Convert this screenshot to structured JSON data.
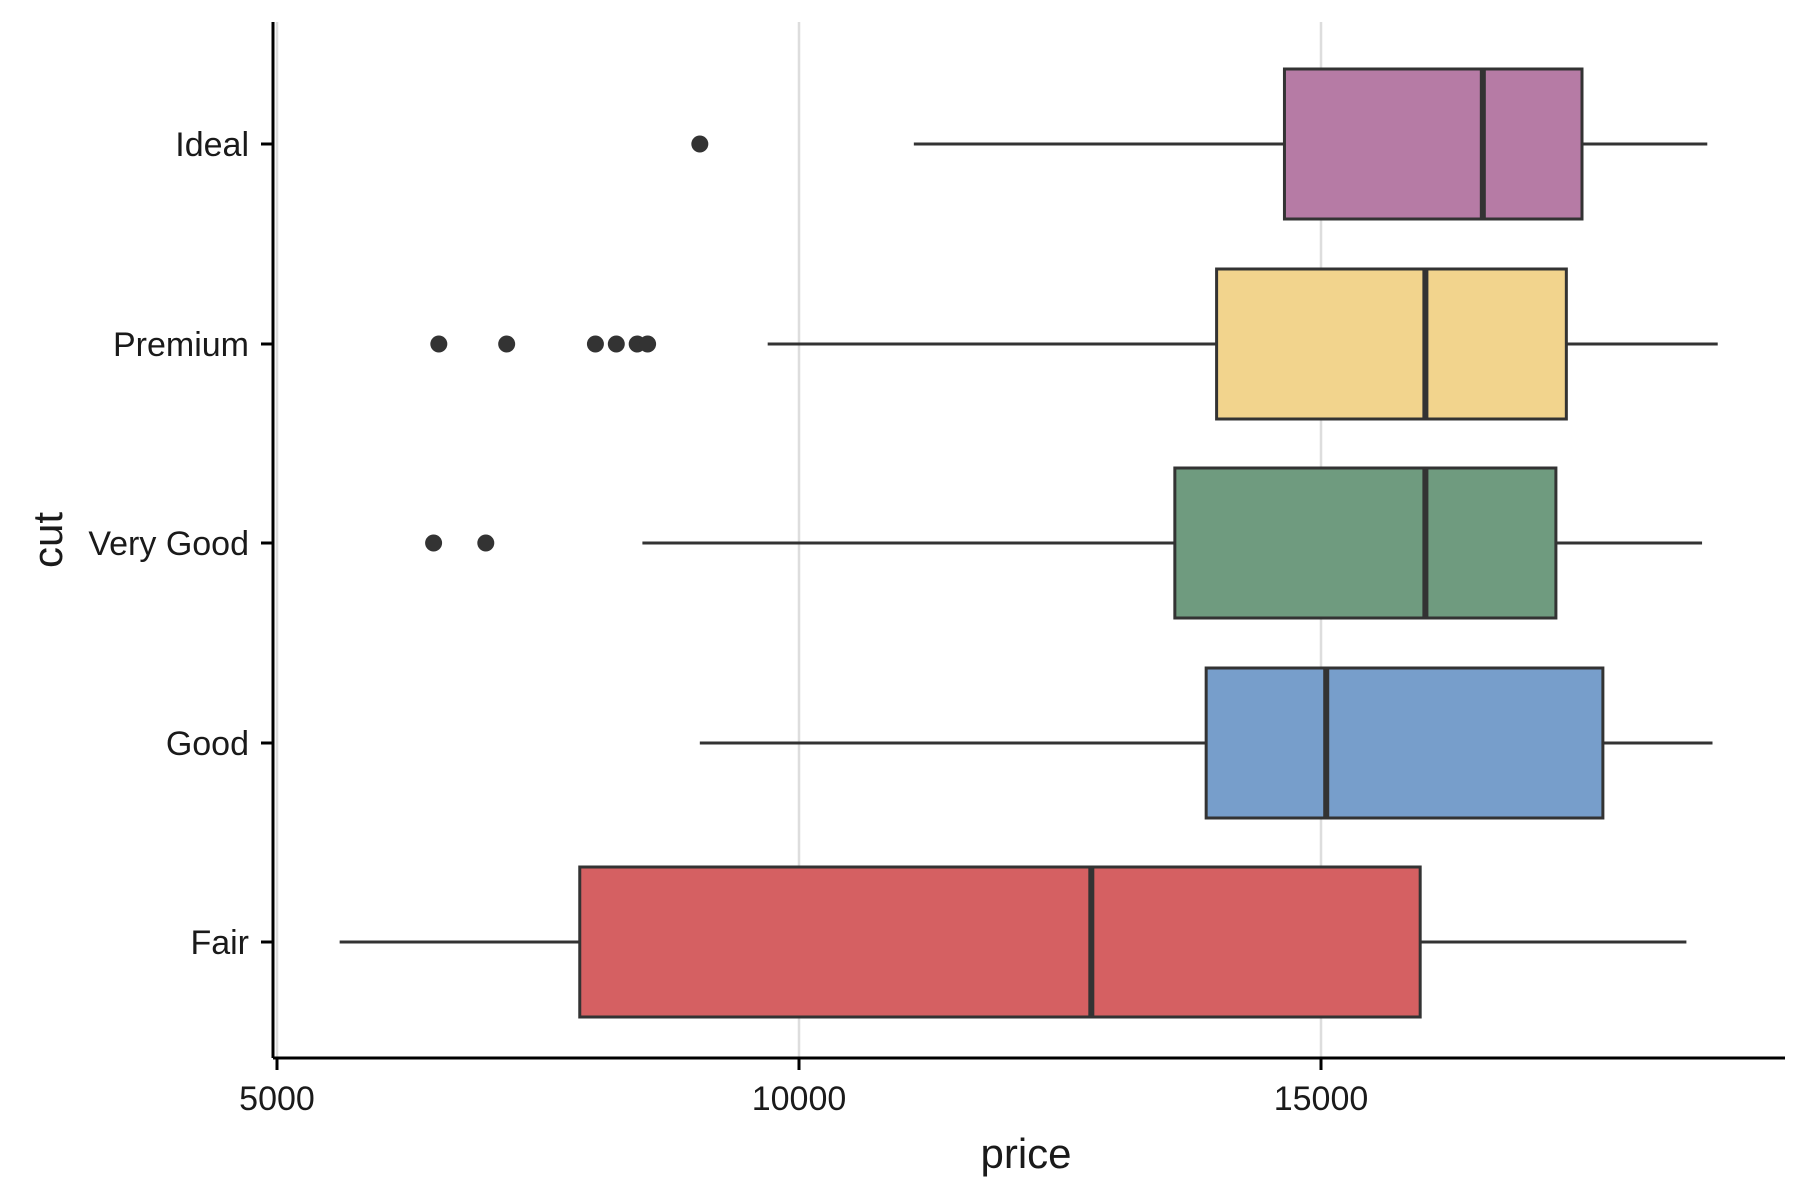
{
  "chart_data": {
    "type": "boxplot",
    "orientation": "horizontal",
    "xlabel": "price",
    "ylabel": "cut",
    "xlim": [
      5000,
      19500
    ],
    "xticks": [
      5000,
      10000,
      15000
    ],
    "xtick_labels": [
      "5000",
      "10000",
      "15000"
    ],
    "grid": {
      "vertical_major": true,
      "horizontal": false
    },
    "legend": "none",
    "categories": [
      "Fair",
      "Good",
      "Very Good",
      "Premium",
      "Ideal"
    ],
    "boxes": [
      {
        "category": "Fair",
        "whisker_low": 5600,
        "q1": 7900,
        "median": 12800,
        "q3": 15950,
        "whisker_high": 18500,
        "outliers": [],
        "color": "#d56062"
      },
      {
        "category": "Good",
        "whisker_low": 9050,
        "q1": 13900,
        "median": 15050,
        "q3": 17700,
        "whisker_high": 18750,
        "outliers": [],
        "color": "#779ecb"
      },
      {
        "category": "Very Good",
        "whisker_low": 8500,
        "q1": 13600,
        "median": 16000,
        "q3": 17250,
        "whisker_high": 18650,
        "outliers": [
          6500,
          7000
        ],
        "color": "#6f9b7f"
      },
      {
        "category": "Premium",
        "whisker_low": 9700,
        "q1": 14000,
        "median": 16000,
        "q3": 17350,
        "whisker_high": 18800,
        "outliers": [
          6550,
          7200,
          8050,
          8250,
          8450,
          8550
        ],
        "color": "#f2d48d"
      },
      {
        "category": "Ideal",
        "whisker_low": 11100,
        "q1": 14650,
        "median": 16550,
        "q3": 17500,
        "whisker_high": 18700,
        "outliers": [
          9050
        ],
        "color": "#b67ba5"
      }
    ],
    "colors": {
      "outline": "#333333",
      "grid": "#dddddd",
      "axis": "#000000"
    }
  }
}
